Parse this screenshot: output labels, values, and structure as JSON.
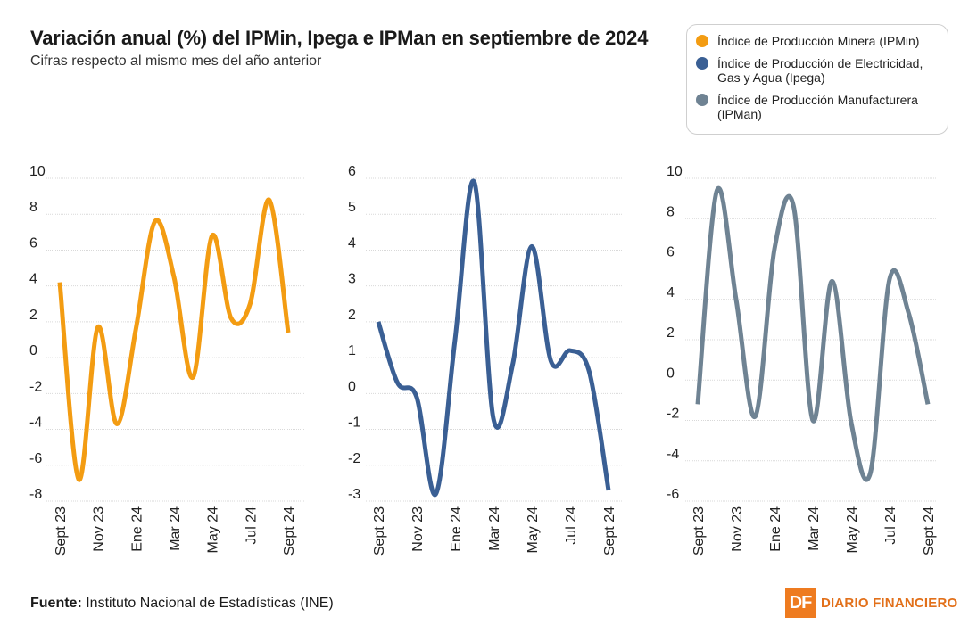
{
  "header": {
    "title": "Variación anual (%) del IPMin, Ipega e IPMan en septiembre de 2024",
    "subtitle": "Cifras respecto al mismo mes del año anterior"
  },
  "legend": {
    "items": [
      {
        "label": "Índice de Producción Minera (IPMin)",
        "color": "#f39c12"
      },
      {
        "label": "Índice de Producción de Electricidad, Gas y Agua (Ipega)",
        "color": "#3a5f94"
      },
      {
        "label": "Índice de Producción Manufacturera (IPMan)",
        "color": "#6f8393"
      }
    ]
  },
  "footer": {
    "source_label": "Fuente:",
    "source_text": "Instituto Nacional de Estadísticas (INE)",
    "brand_logo": "DF",
    "brand_name": "DIARIO FINANCIERO"
  },
  "chart_data": [
    {
      "type": "line",
      "name": "IPMin",
      "color": "#f39c12",
      "x": [
        "Sept 23",
        "Oct 23",
        "Nov 23",
        "Dic 23",
        "Ene 24",
        "Feb 24",
        "Mar 24",
        "Abr 24",
        "May 24",
        "Jun 24",
        "Jul 24",
        "Ago 24",
        "Sept 24"
      ],
      "values": [
        4.2,
        -6.8,
        1.7,
        -3.7,
        1.6,
        7.6,
        4.5,
        -1.1,
        6.8,
        2.2,
        3.0,
        8.8,
        1.4
      ],
      "tick_labels": [
        "Sept 23",
        "Nov 23",
        "Ene 24",
        "Mar 24",
        "May 24",
        "Jul 24",
        "Sept 24"
      ],
      "tick_indices": [
        0,
        2,
        4,
        6,
        8,
        10,
        12
      ],
      "yticks": [
        10,
        8,
        6,
        4,
        2,
        0,
        -2,
        -4,
        -6,
        -8
      ],
      "ylim": [
        -8,
        10
      ]
    },
    {
      "type": "line",
      "name": "Ipega",
      "color": "#3a5f94",
      "x": [
        "Sept 23",
        "Oct 23",
        "Nov 23",
        "Dic 23",
        "Ene 24",
        "Feb 24",
        "Mar 24",
        "Abr 24",
        "May 24",
        "Jun 24",
        "Jul 24",
        "Ago 24",
        "Sept 24"
      ],
      "values": [
        2.0,
        0.3,
        -0.1,
        -2.8,
        1.5,
        5.9,
        -0.7,
        0.8,
        4.1,
        0.9,
        1.2,
        0.6,
        -2.7
      ],
      "tick_labels": [
        "Sept 23",
        "Nov 23",
        "Ene 24",
        "Mar 24",
        "May 24",
        "Jul 24",
        "Sept 24"
      ],
      "tick_indices": [
        0,
        2,
        4,
        6,
        8,
        10,
        12
      ],
      "yticks": [
        6,
        5,
        4,
        3,
        2,
        1,
        0,
        -1,
        -2,
        -3
      ],
      "ylim": [
        -3,
        6
      ]
    },
    {
      "type": "line",
      "name": "IPMan",
      "color": "#6f8393",
      "x": [
        "Sept 23",
        "Oct 23",
        "Nov 23",
        "Dic 23",
        "Ene 24",
        "Feb 24",
        "Mar 24",
        "Abr 24",
        "May 24",
        "Jun 24",
        "Jul 24",
        "Ago 24",
        "Sept 24"
      ],
      "values": [
        -1.2,
        9.4,
        4.0,
        -1.8,
        6.5,
        8.6,
        -2.0,
        4.9,
        -2.1,
        -4.6,
        5.0,
        3.3,
        -1.2
      ],
      "tick_labels": [
        "Sept 23",
        "Nov 23",
        "Ene 24",
        "Mar 24",
        "May 24",
        "Jul 24",
        "Sept 24"
      ],
      "tick_indices": [
        0,
        2,
        4,
        6,
        8,
        10,
        12
      ],
      "yticks": [
        10,
        8,
        6,
        4,
        2,
        0,
        -2,
        -4,
        -6
      ],
      "ylim": [
        -6,
        10
      ]
    }
  ]
}
